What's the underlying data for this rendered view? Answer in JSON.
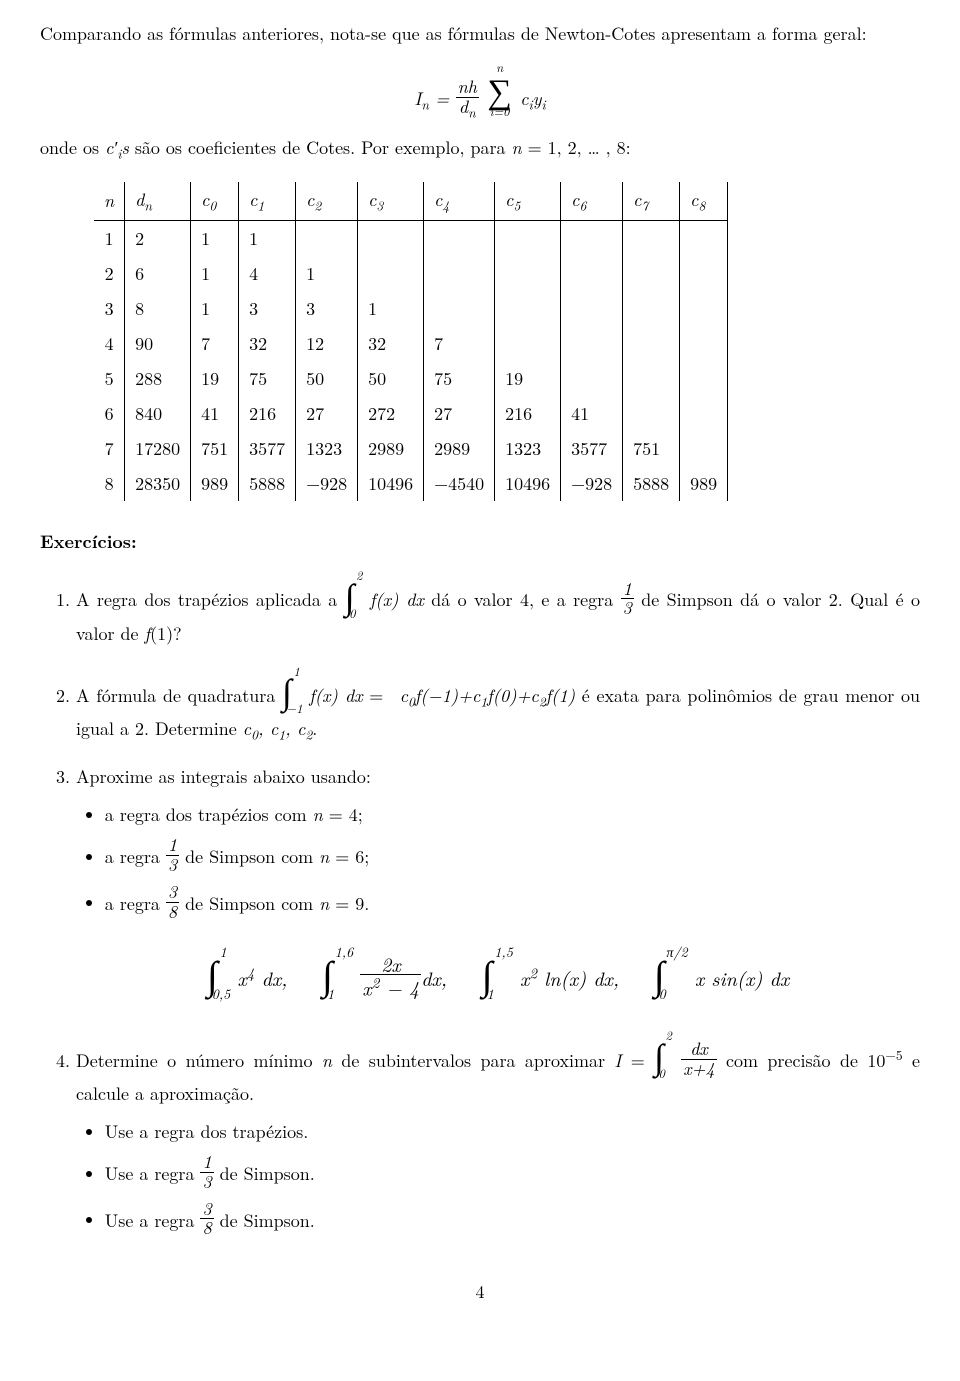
{
  "intro_para": "Comparando as fórmulas anteriores, nota-se que as fórmulas de Newton-Cotes apresentam a forma geral:",
  "formula_html": "<span class='formula'>I<sub>n</sub> = <span class='frac'><span class='num'>nh</span><span class='den'>d<sub>n</sub></span></span> <span class='bigsum'><span class='top'>n</span><span class='sym'>&sum;</span><span class='bot'>i=0</span></span> c<sub>i</sub>y<sub>i</sub></span>",
  "coef_line_html": "onde os <span class='formula'>c&prime;<sub>i</sub>s</span> são os coeficientes de Cotes. Por exemplo, para <span class='formula'>n</span> = 1, 2, &hellip; , 8:",
  "table": {
    "headers_html": [
      "n",
      "d<sub>n</sub>",
      "c<sub>0</sub>",
      "c<sub>1</sub>",
      "c<sub>2</sub>",
      "c<sub>3</sub>",
      "c<sub>4</sub>",
      "c<sub>5</sub>",
      "c<sub>6</sub>",
      "c<sub>7</sub>",
      "c<sub>8</sub>"
    ],
    "rows": [
      [
        "1",
        "2",
        "1",
        "1",
        "",
        "",
        "",
        "",
        "",
        "",
        ""
      ],
      [
        "2",
        "6",
        "1",
        "4",
        "1",
        "",
        "",
        "",
        "",
        "",
        ""
      ],
      [
        "3",
        "8",
        "1",
        "3",
        "3",
        "1",
        "",
        "",
        "",
        "",
        ""
      ],
      [
        "4",
        "90",
        "7",
        "32",
        "12",
        "32",
        "7",
        "",
        "",
        "",
        ""
      ],
      [
        "5",
        "288",
        "19",
        "75",
        "50",
        "50",
        "75",
        "19",
        "",
        "",
        ""
      ],
      [
        "6",
        "840",
        "41",
        "216",
        "27",
        "272",
        "27",
        "216",
        "41",
        "",
        ""
      ],
      [
        "7",
        "17280",
        "751",
        "3577",
        "1323",
        "2989",
        "2989",
        "1323",
        "3577",
        "751",
        ""
      ],
      [
        "8",
        "28350",
        "989",
        "5888",
        "−928",
        "10496",
        "−4540",
        "10496",
        "−928",
        "5888",
        "989"
      ]
    ]
  },
  "exerc_title": "Exercícios:",
  "exercises_html": [
    "A regra dos trapézios aplicada a <span class='intg'><span class='ub'>2</span><span class='sym'>&int;</span><span class='lb'>0</span></span> <span class='formula'>f(x) dx</span> dá o valor 4, e a regra <span class='frac'><span class='num'>1</span><span class='den'>3</span></span> de Simpson dá o valor 2. Qual é o valor de <span class='formula'>f</span>(1)?",
    "A fórmula de quadratura <span class='intg'><span class='ub'>1</span><span class='sym'>&int;</span><span class='lb'>&minus;1</span></span> <span class='formula'>f(x) dx</span> = &nbsp;<span class='formula'>c<sub>0</sub>f(&minus;1)+c<sub>1</sub>f(0)+c<sub>2</sub>f(1)</span> é exata para polinômios de grau menor ou igual a 2. Determine <span class='formula'>c<sub>0</sub>, c<sub>1</sub>, c<sub>2</sub></span>.",
    "Aproxime as integrais abaixo usando:",
    "Determine o número mínimo <span class='formula'>n</span> de subintervalos para aproximar <span class='formula'>I</span> = <span class='intg'><span class='ub'>2</span><span class='sym'>&int;</span><span class='lb'>0</span></span> <span class='frac'><span class='num'>dx</span><span class='den'>x+4</span></span> com precisão de 10<sup>&minus;5</sup> e calcule a aproximação."
  ],
  "ex3_bullets_html": [
    "a regra dos trapézios com <span class='formula'>n</span> = 4;",
    "a regra <span class='frac'><span class='num'>1</span><span class='den'>3</span></span> de Simpson com <span class='formula'>n</span> = 6;",
    "a regra <span class='frac'><span class='num'>3</span><span class='den'>8</span></span> de Simpson com <span class='formula'>n</span> = 9."
  ],
  "integral_row_html": "<span class='intg'><span class='ub'>1</span><span class='sym'>&int;</span><span class='lb'>0,5</span></span> <span class='formula'>x<sup>4</sup> dx</span>, &nbsp;&nbsp; <span class='intg'><span class='ub'>1,6</span><span class='sym'>&int;</span><span class='lb'>1</span></span> <span class='frac'><span class='num'>2x</span><span class='den'>x<sup>2</sup> &minus; 4</span></span><span class='formula'>dx</span>, &nbsp;&nbsp; <span class='intg'><span class='ub'>1,5</span><span class='sym'>&int;</span><span class='lb'>1</span></span> <span class='formula'>x<sup>2</sup></span> ln(<span class='formula'>x</span>) <span class='formula'>dx</span>, &nbsp;&nbsp; <span class='intg'><span class='ub'>π/2</span><span class='sym'>&int;</span><span class='lb'>0</span></span> <span class='formula'>x</span> sin(<span class='formula'>x</span>) <span class='formula'>dx</span>",
  "ex4_bullets_html": [
    "Use a regra dos trapézios.",
    "Use a regra <span class='frac'><span class='num'>1</span><span class='den'>3</span></span> de Simpson.",
    "Use a regra <span class='frac'><span class='num'>3</span><span class='den'>8</span></span> de Simpson."
  ],
  "pagenum": "4"
}
